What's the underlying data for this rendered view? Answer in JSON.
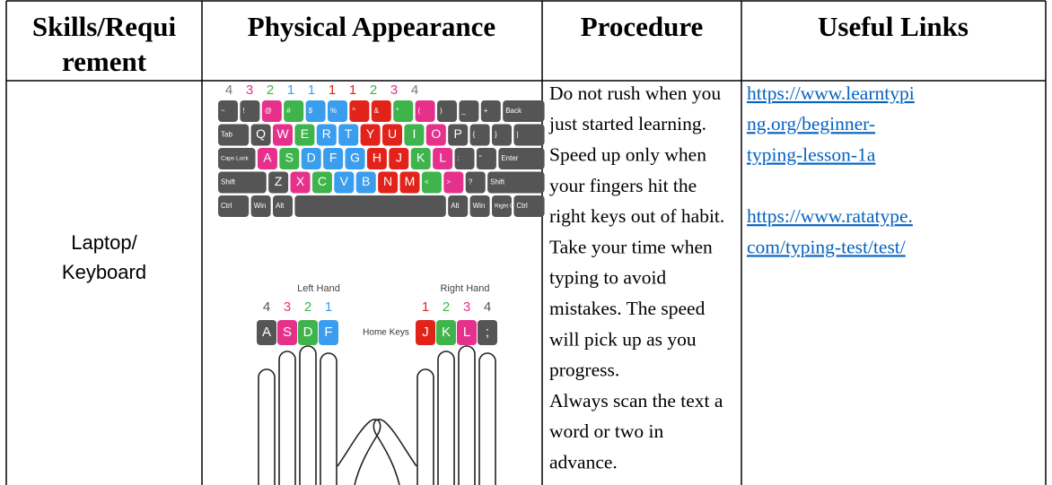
{
  "table": {
    "headers": [
      [
        "Skills/Requi",
        "rement"
      ],
      [
        "Physical Appearance"
      ],
      [
        "Procedure"
      ],
      [
        "Useful Links"
      ]
    ],
    "rows": [
      {
        "requirement": [
          "Laptop/",
          "Keyboard"
        ],
        "procedure": [
          "Do not rush when you",
          "just started learning.",
          "Speed up only when",
          "your fingers hit the",
          "right keys out of habit.",
          "Take your time when",
          "typing to avoid",
          "mistakes. The speed",
          "will pick up as you",
          "progress.",
          "Always scan the text a",
          "word or two in",
          "advance."
        ],
        "links": [
          [
            "https://www.learntypi",
            "ng.org/beginner-",
            "typing-lesson-1a"
          ],
          [
            "https://www.ratatype.",
            "com/typing-test/test/"
          ]
        ]
      }
    ]
  },
  "keyboard": {
    "finger_numbers": [
      "4",
      "3",
      "2",
      "1",
      "1",
      "1",
      "1",
      "2",
      "3",
      "4"
    ],
    "finger_colors": [
      "#777777",
      "#e5318b",
      "#3fb44c",
      "#3b9ded",
      "#3b9ded",
      "#e2231a",
      "#e2231a",
      "#3fb44c",
      "#e5318b",
      "#777777"
    ],
    "rows": [
      {
        "keys": [
          "~",
          "!",
          "@",
          "#",
          "$",
          "%",
          "^",
          "&",
          "*",
          "(",
          ")",
          "_",
          "+",
          "Back"
        ],
        "colors": [
          "#555555",
          "#555555",
          "#e5318b",
          "#3fb44c",
          "#3b9ded",
          "#3b9ded",
          "#e2231a",
          "#e2231a",
          "#3fb44c",
          "#e5318b",
          "#555555",
          "#555555",
          "#555555",
          "#555555"
        ]
      },
      {
        "keys": [
          "Tab",
          "Q",
          "W",
          "E",
          "R",
          "T",
          "Y",
          "U",
          "I",
          "O",
          "P",
          "{",
          "}",
          "|"
        ],
        "colors": [
          "#555555",
          "#555555",
          "#e5318b",
          "#3fb44c",
          "#3b9ded",
          "#3b9ded",
          "#e2231a",
          "#e2231a",
          "#3fb44c",
          "#e5318b",
          "#555555",
          "#555555",
          "#555555",
          "#555555"
        ]
      },
      {
        "keys": [
          "Caps Lock",
          "A",
          "S",
          "D",
          "F",
          "G",
          "H",
          "J",
          "K",
          "L",
          ":",
          "\"",
          "Enter"
        ],
        "colors": [
          "#555555",
          "#e5318b",
          "#3fb44c",
          "#3b9ded",
          "#3b9ded",
          "#3b9ded",
          "#e2231a",
          "#e2231a",
          "#3fb44c",
          "#e5318b",
          "#555555",
          "#555555",
          "#555555"
        ]
      },
      {
        "keys": [
          "Shift",
          "Z",
          "X",
          "C",
          "V",
          "B",
          "N",
          "M",
          "<",
          ">",
          "?",
          "Shift"
        ],
        "colors": [
          "#555555",
          "#555555",
          "#e5318b",
          "#3fb44c",
          "#3b9ded",
          "#3b9ded",
          "#e2231a",
          "#e2231a",
          "#3fb44c",
          "#e5318b",
          "#555555",
          "#555555"
        ]
      },
      {
        "keys": [
          "Ctrl",
          "Win",
          "Alt",
          "Alt",
          "Win",
          "Right Click",
          "Ctrl"
        ],
        "colors": [
          "#555555",
          "#555555",
          "#555555",
          "#555555",
          "#555555",
          "#555555",
          "#555555"
        ]
      }
    ],
    "left_hand": {
      "label": "Left Hand",
      "numbers": [
        "4",
        "3",
        "2",
        "1"
      ],
      "keys": [
        "A",
        "S",
        "D",
        "F"
      ],
      "colors": [
        "#555555",
        "#e5318b",
        "#3fb44c",
        "#3b9ded"
      ]
    },
    "right_hand": {
      "label": "Right Hand",
      "numbers": [
        "1",
        "2",
        "3",
        "4"
      ],
      "keys": [
        "J",
        "K",
        "L",
        ";"
      ],
      "colors": [
        "#e2231a",
        "#3fb44c",
        "#e5318b",
        "#555555"
      ]
    },
    "home_keys": "Home Keys"
  }
}
